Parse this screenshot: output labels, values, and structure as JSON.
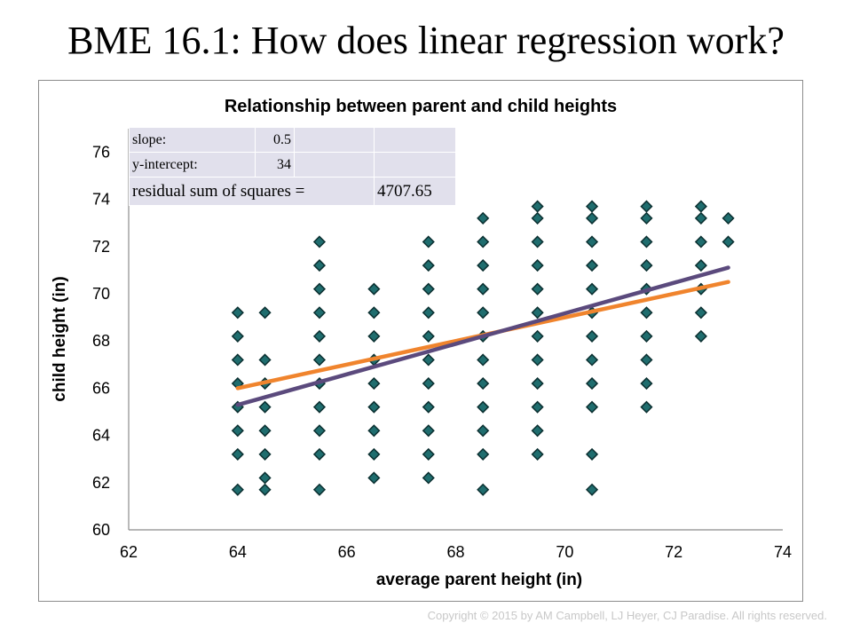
{
  "slide": {
    "title": "BME 16.1: How does linear regression work?",
    "copyright": "Copyright © 2015 by AM Campbell, LJ Heyer, CJ Paradise. All rights reserved."
  },
  "stats_table": {
    "slope_label": "slope:",
    "slope_value": "0.5",
    "intercept_label": "y-intercept:",
    "intercept_value": "34",
    "rss_label": "residual sum of squares =",
    "rss_value": "4707.65"
  },
  "colors": {
    "marker": "#1f6d6e",
    "marker_edge": "#0b2f30",
    "line_fit": "#f0842d",
    "line_best": "#5b4a7d",
    "table_bg": "#e1e0ec",
    "axis": "#8c8c8c"
  },
  "chart_data": {
    "type": "scatter",
    "title": "Relationship between parent and child heights",
    "xlabel": "average parent height (in)",
    "ylabel": "child height (in)",
    "xlim": [
      62,
      74
    ],
    "ylim": [
      60,
      77
    ],
    "xticks": [
      "62",
      "64",
      "66",
      "68",
      "70",
      "72",
      "74"
    ],
    "yticks": [
      "60",
      "62",
      "64",
      "66",
      "68",
      "70",
      "72",
      "74",
      "76"
    ],
    "grid": false,
    "legend": "none",
    "marker": "diamond",
    "columns": [
      {
        "x": 64,
        "y": [
          61.7,
          63.2,
          64.2,
          65.2,
          66.2,
          67.2,
          68.2,
          69.2
        ]
      },
      {
        "x": 64.5,
        "y": [
          61.7,
          62.2,
          63.2,
          64.2,
          65.2,
          66.2,
          67.2,
          69.2
        ]
      },
      {
        "x": 65.5,
        "y": [
          61.7,
          63.2,
          64.2,
          65.2,
          66.2,
          67.2,
          68.2,
          69.2,
          70.2,
          71.2,
          72.2
        ]
      },
      {
        "x": 66.5,
        "y": [
          62.2,
          63.2,
          64.2,
          65.2,
          66.2,
          67.2,
          68.2,
          69.2,
          70.2
        ]
      },
      {
        "x": 67.5,
        "y": [
          62.2,
          63.2,
          64.2,
          65.2,
          66.2,
          67.2,
          68.2,
          69.2,
          70.2,
          71.2,
          72.2
        ]
      },
      {
        "x": 68.5,
        "y": [
          61.7,
          63.2,
          64.2,
          65.2,
          66.2,
          67.2,
          68.2,
          69.2,
          70.2,
          71.2,
          72.2,
          73.2
        ]
      },
      {
        "x": 69.5,
        "y": [
          63.2,
          64.2,
          65.2,
          66.2,
          67.2,
          68.2,
          69.2,
          70.2,
          71.2,
          72.2,
          73.2,
          73.7
        ]
      },
      {
        "x": 70.5,
        "y": [
          61.7,
          63.2,
          65.2,
          66.2,
          67.2,
          68.2,
          69.2,
          70.2,
          71.2,
          72.2,
          73.2,
          73.7
        ]
      },
      {
        "x": 71.5,
        "y": [
          65.2,
          66.2,
          67.2,
          68.2,
          69.2,
          70.2,
          71.2,
          72.2,
          73.2,
          73.7
        ]
      },
      {
        "x": 72.5,
        "y": [
          68.2,
          69.2,
          70.2,
          71.2,
          72.2,
          73.2,
          73.7
        ]
      },
      {
        "x": 73,
        "y": [
          72.2,
          73.2
        ]
      }
    ],
    "lines": [
      {
        "slope": 0.5,
        "intercept": 34,
        "x": [
          64,
          73
        ],
        "color": "#f0842d"
      },
      {
        "slope": 0.646,
        "intercept": 23.95,
        "x": [
          64,
          73
        ],
        "color": "#5b4a7d"
      }
    ]
  }
}
